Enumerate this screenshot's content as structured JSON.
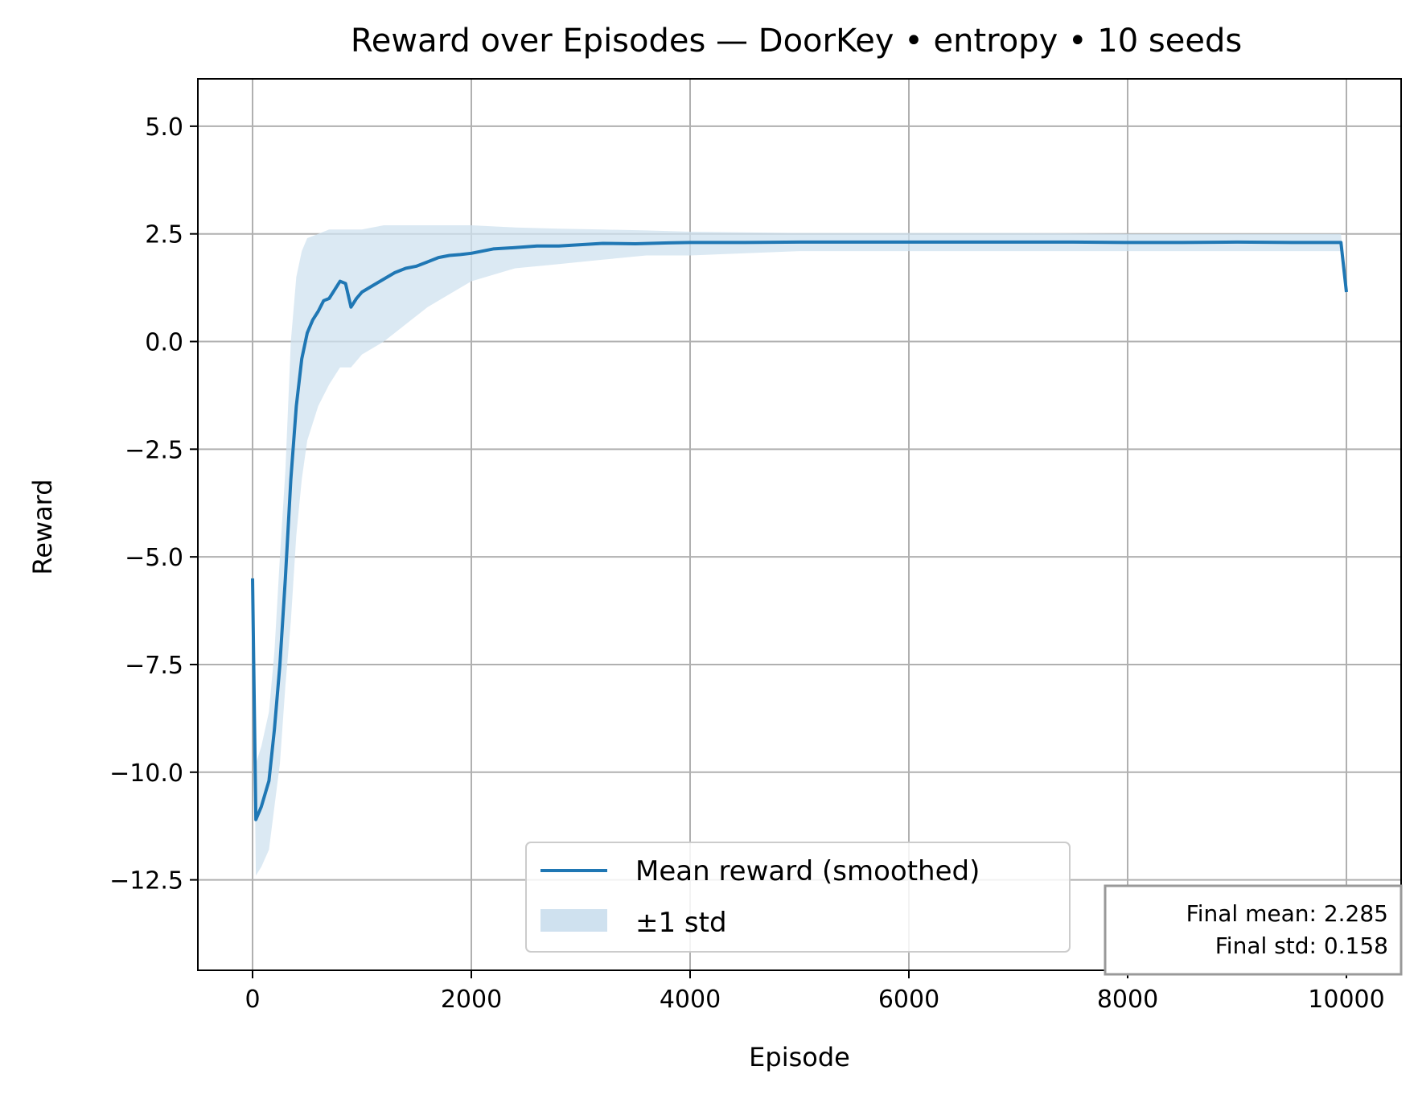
{
  "chart_data": {
    "type": "line",
    "title": "Reward over Episodes — DoorKey • entropy • 10 seeds",
    "xlabel": "Episode",
    "ylabel": "Reward",
    "xlim": [
      -500,
      10500
    ],
    "ylim": [
      -14.6,
      6.1
    ],
    "xticks": [
      0,
      2000,
      4000,
      6000,
      8000,
      10000
    ],
    "xtick_labels": [
      "0",
      "2000",
      "4000",
      "6000",
      "8000",
      "10000"
    ],
    "yticks": [
      5.0,
      2.5,
      0.0,
      -2.5,
      -5.0,
      -7.5,
      -10.0,
      -12.5
    ],
    "ytick_labels": [
      "5.0",
      "2.5",
      "0.0",
      "−2.5",
      "−5.0",
      "−7.5",
      "−10.0",
      "−12.5"
    ],
    "grid": true,
    "legend_position": "lower-center",
    "series": [
      {
        "name": "Mean reward (smoothed)",
        "color": "#1f77b4",
        "x": [
          0,
          30,
          80,
          150,
          200,
          250,
          300,
          350,
          400,
          450,
          500,
          550,
          600,
          650,
          700,
          750,
          800,
          850,
          900,
          950,
          1000,
          1100,
          1200,
          1300,
          1400,
          1500,
          1600,
          1700,
          1800,
          1900,
          2000,
          2200,
          2400,
          2600,
          2800,
          3000,
          3200,
          3500,
          3800,
          4000,
          4500,
          5000,
          5500,
          6000,
          6500,
          7000,
          7500,
          8000,
          8500,
          9000,
          9500,
          9950,
          10000
        ],
        "y": [
          -5.5,
          -11.1,
          -10.8,
          -10.2,
          -9.0,
          -7.5,
          -5.5,
          -3.2,
          -1.5,
          -0.4,
          0.2,
          0.5,
          0.7,
          0.95,
          1.0,
          1.2,
          1.4,
          1.35,
          0.8,
          1.0,
          1.15,
          1.3,
          1.45,
          1.6,
          1.7,
          1.75,
          1.85,
          1.95,
          2.0,
          2.02,
          2.05,
          2.15,
          2.18,
          2.22,
          2.22,
          2.25,
          2.28,
          2.27,
          2.29,
          2.3,
          2.3,
          2.31,
          2.31,
          2.31,
          2.31,
          2.31,
          2.31,
          2.3,
          2.3,
          2.31,
          2.3,
          2.3,
          1.15
        ]
      },
      {
        "name": "±1 std",
        "color": "#cfe1ef",
        "x": [
          0,
          30,
          80,
          150,
          200,
          250,
          300,
          350,
          400,
          450,
          500,
          600,
          700,
          800,
          900,
          1000,
          1200,
          1400,
          1600,
          1800,
          2000,
          2400,
          2800,
          3200,
          3600,
          4000,
          5000,
          6000,
          7000,
          8000,
          9000,
          9950,
          10000
        ],
        "lower": [
          -5.6,
          -12.4,
          -12.2,
          -11.8,
          -10.8,
          -9.8,
          -8.0,
          -6.5,
          -4.5,
          -3.2,
          -2.3,
          -1.5,
          -1.0,
          -0.6,
          -0.6,
          -0.3,
          0.0,
          0.4,
          0.8,
          1.1,
          1.4,
          1.7,
          1.8,
          1.9,
          2.0,
          2.0,
          2.1,
          2.1,
          2.1,
          2.1,
          2.1,
          2.1,
          1.1
        ],
        "upper": [
          -5.4,
          -9.8,
          -9.4,
          -8.6,
          -7.2,
          -5.0,
          -3.0,
          0.0,
          1.5,
          2.1,
          2.4,
          2.5,
          2.6,
          2.6,
          2.6,
          2.6,
          2.7,
          2.7,
          2.7,
          2.7,
          2.7,
          2.65,
          2.62,
          2.6,
          2.58,
          2.55,
          2.52,
          2.52,
          2.52,
          2.5,
          2.5,
          2.5,
          1.2
        ]
      }
    ],
    "legend": {
      "entries": [
        "Mean reward (smoothed)",
        "±1 std"
      ]
    },
    "stats_box": {
      "line1": "Final mean: 2.285",
      "line2": "Final std: 0.158"
    }
  }
}
